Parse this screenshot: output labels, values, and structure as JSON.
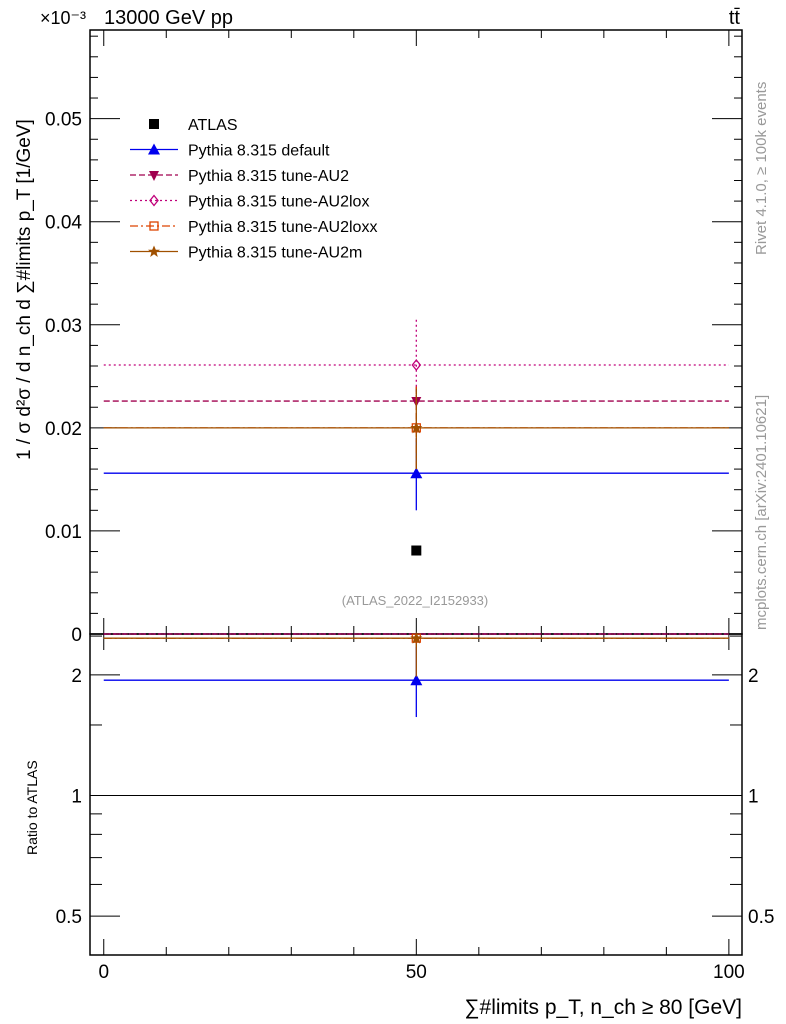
{
  "chart_data": {
    "type": "scatter",
    "title_left": "13000 GeV pp",
    "title_right": "tt̄",
    "exponent_label": "×10⁻³",
    "ylabel": "1 / σ d²σ / d n_ch d ∑#limits p_T [1/GeV]",
    "ylabel_ratio": "Ratio to ATLAS",
    "xlabel": "∑#limits p_T, n_ch ≥ 80 [GeV]",
    "analysis_label": "(ATLAS_2022_I2152933)",
    "side_label_1": "Rivet 4.1.0, ≥ 100k events",
    "side_label_2": "mcplots.cern.ch [arXiv:2401.10621]",
    "xlim": [
      -2.2,
      102.1
    ],
    "ylim": [
      0,
      0.0586
    ],
    "ratio_ylim": [
      0.4,
      2.53
    ],
    "ratio_scale": "log",
    "x_ticks": [
      "0",
      "50",
      "100"
    ],
    "y_ticks": [
      "0",
      "0.01",
      "0.02",
      "0.03",
      "0.04",
      "0.05"
    ],
    "ratio_ticks": [
      "0.5",
      "1",
      "2"
    ],
    "legend_placement": "top-left",
    "series": [
      {
        "name": "ATLAS",
        "color": "#000000",
        "x": 50,
        "y": 0.0081,
        "err": [
          0.0081,
          0.0081
        ],
        "marker": "square",
        "line": "none",
        "ratio": 1.0
      },
      {
        "name": "Pythia 8.315 default",
        "color": "#0000ee",
        "x": 50,
        "y": 0.0156,
        "err": [
          0.012,
          0.019
        ],
        "marker": "triangle-up",
        "line": "solid",
        "ratio": 1.94,
        "ratio_err": [
          1.57,
          2.35
        ]
      },
      {
        "name": "Pythia 8.315 tune-AU2",
        "color": "#a0004f",
        "x": 50,
        "y": 0.0226,
        "err": [
          0.02,
          0.024
        ],
        "marker": "triangle-down",
        "line": "dashed",
        "ratio": 2.8
      },
      {
        "name": "Pythia 8.315 tune-AU2lox",
        "color": "#c0007a",
        "x": 50,
        "y": 0.0261,
        "err": [
          0.0235,
          0.0307
        ],
        "marker": "diamond-open",
        "line": "dotted",
        "ratio": 3.2
      },
      {
        "name": "Pythia 8.315 tune-AU2loxx",
        "color": "#dd4400",
        "x": 50,
        "y": 0.02,
        "err": [
          0.016,
          0.024
        ],
        "marker": "square-open",
        "line": "dashdot",
        "ratio": 2.47
      },
      {
        "name": "Pythia 8.315 tune-AU2m",
        "color": "#a05000",
        "x": 50,
        "y": 0.02,
        "err": [
          0.016,
          0.0238
        ],
        "marker": "star",
        "line": "solid",
        "ratio": 2.47,
        "ratio_err": [
          1.98,
          2.6
        ]
      }
    ]
  }
}
